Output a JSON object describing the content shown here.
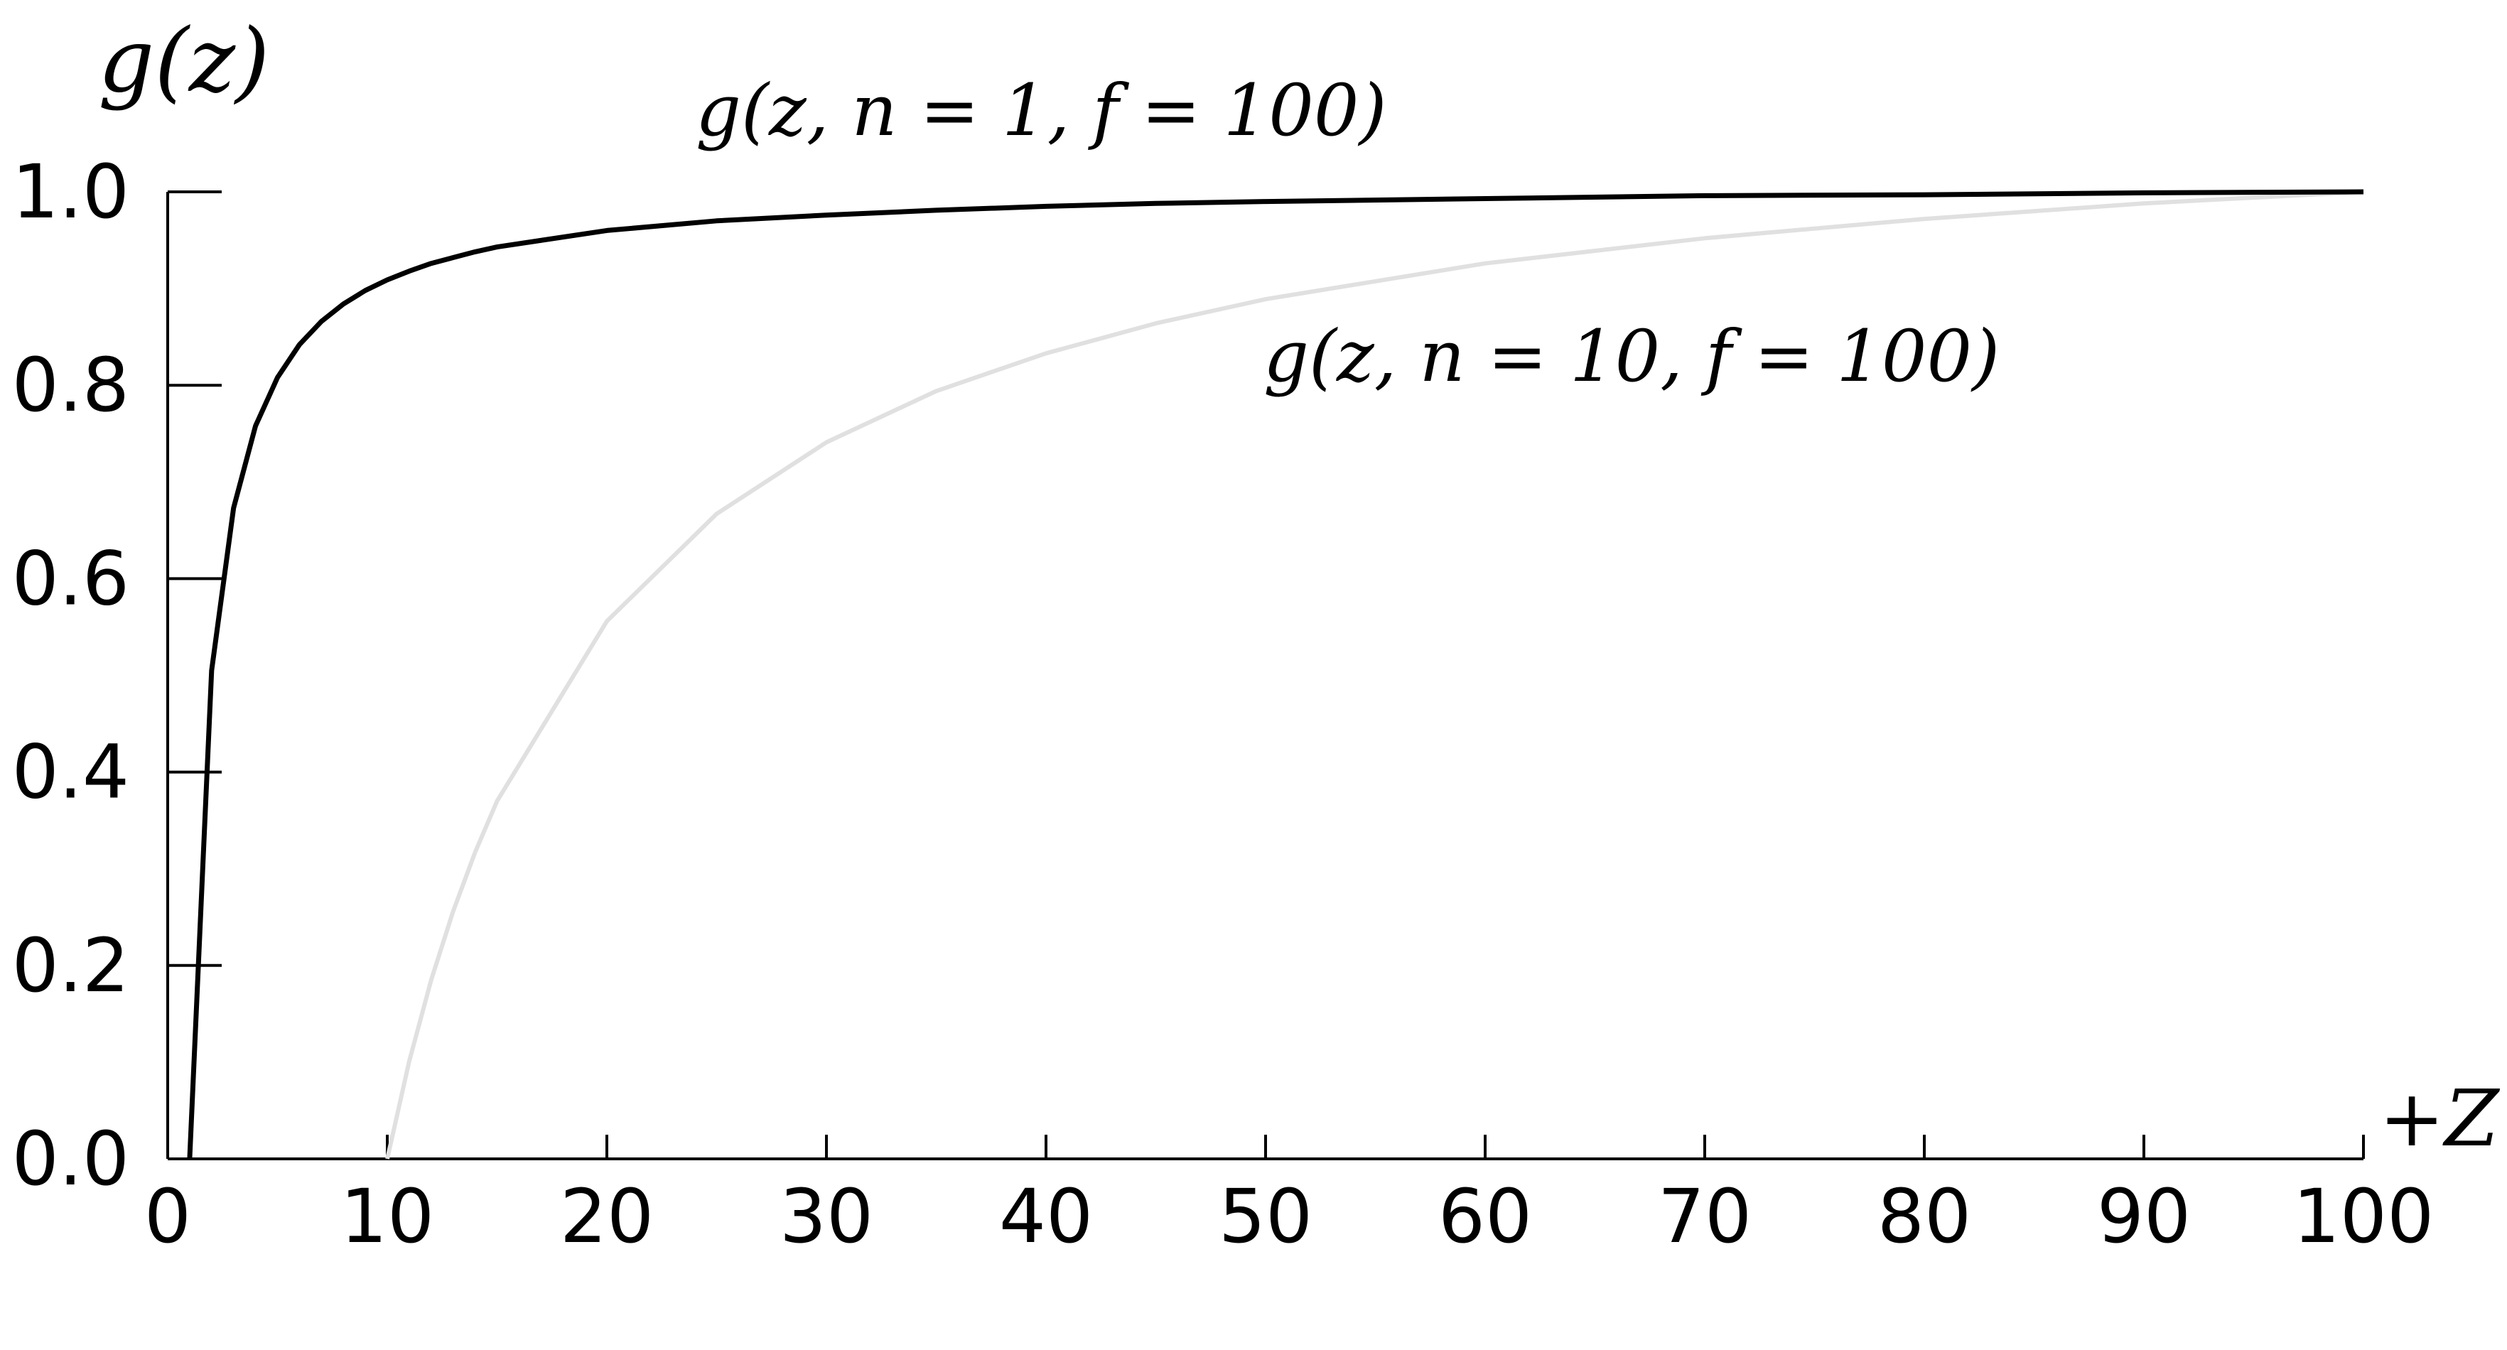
{
  "chart_data": {
    "type": "line",
    "y_label": "g(z)",
    "x_label": "+Z",
    "x": [
      1,
      2,
      3,
      4,
      5,
      6,
      7,
      8,
      9,
      10,
      11,
      12,
      13,
      14,
      15,
      20,
      25,
      30,
      35,
      40,
      45,
      50,
      60,
      70,
      80,
      90,
      100
    ],
    "series": [
      {
        "name": "g(z, n = 1, f = 100)",
        "color": "#000000",
        "values": [
          0,
          0.505,
          0.673,
          0.758,
          0.808,
          0.842,
          0.866,
          0.884,
          0.898,
          0.909,
          0.918,
          0.926,
          0.932,
          0.938,
          0.943,
          0.96,
          0.97,
          0.976,
          0.981,
          0.985,
          0.988,
          0.99,
          0.993,
          0.996,
          0.997,
          0.999,
          1.0
        ]
      },
      {
        "name": "g(z, n = 10, f = 100)",
        "color": "#e0e0e0",
        "values": [
          null,
          null,
          null,
          null,
          null,
          null,
          null,
          null,
          null,
          0,
          0.101,
          0.185,
          0.256,
          0.317,
          0.37,
          0.556,
          0.667,
          0.741,
          0.794,
          0.833,
          0.864,
          0.889,
          0.926,
          0.952,
          0.972,
          0.988,
          1.0
        ]
      }
    ],
    "xlim": [
      0,
      100
    ],
    "ylim": [
      0,
      1
    ],
    "xticks": [
      0,
      10,
      20,
      30,
      40,
      50,
      60,
      70,
      80,
      90,
      100
    ],
    "yticks": [
      {
        "value": 0,
        "label": "0.0"
      },
      0.2,
      0.4,
      0.6,
      0.8,
      {
        "value": 1,
        "label": "1.0"
      }
    ],
    "grid": false
  }
}
